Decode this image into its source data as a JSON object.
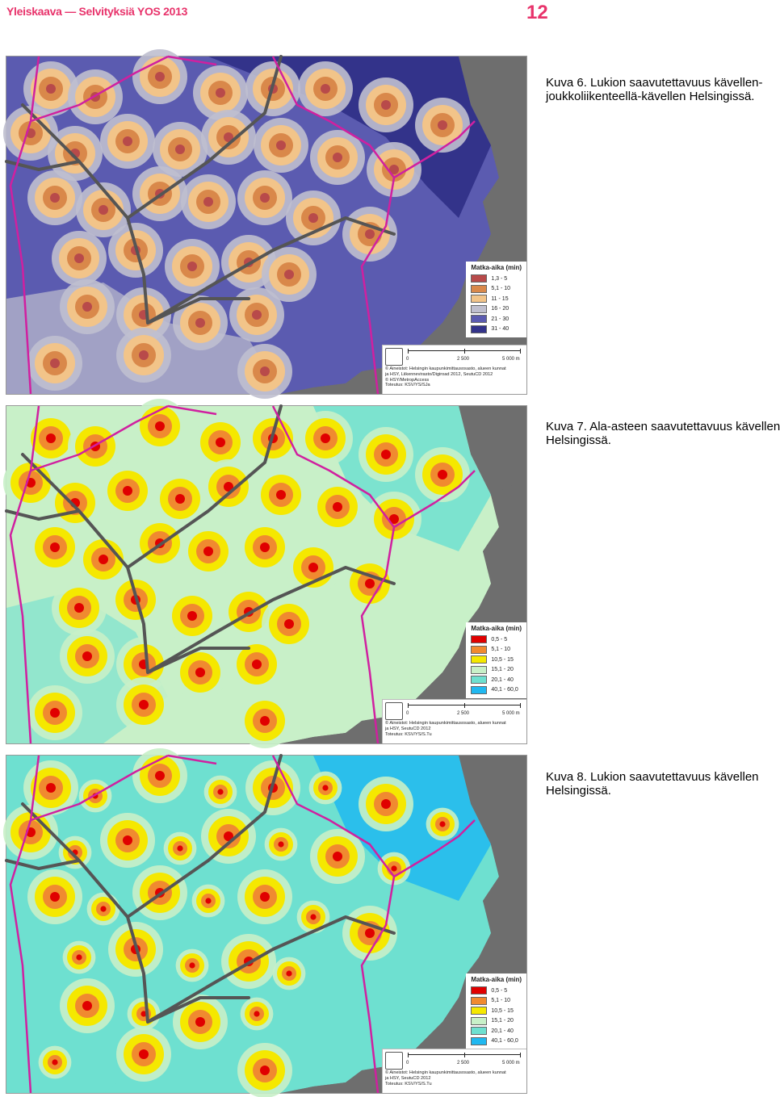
{
  "header": {
    "title": "Yleiskaava — Selvityksiä YOS 2013",
    "page_number": "12"
  },
  "figures": [
    {
      "caption_lines": [
        "Kuva 6. Lukion saavutettavuus kävellen-",
        "joukkoliikenteellä-kävellen  Helsingissä."
      ],
      "legend": {
        "title": "Matka-aika (min)",
        "classes": [
          {
            "label": "1,3 - 5",
            "color": "#b84a4a"
          },
          {
            "label": "5,1 - 10",
            "color": "#d9884a"
          },
          {
            "label": "11 - 15",
            "color": "#f2c489"
          },
          {
            "label": "16 - 20",
            "color": "#bfbfcf"
          },
          {
            "label": "21 - 30",
            "color": "#5b5bb0"
          },
          {
            "label": "31 - 40",
            "color": "#33338a"
          }
        ]
      },
      "scale": {
        "labels": [
          "0",
          "2 500",
          "5 000 m"
        ]
      },
      "credits": [
        "© Aineistot: Helsingin kaupunkimittausosasto, alueen kunnat",
        "ja HSY, Liikennevirasto/Digiroad 2012, SeutuCD 2012",
        "© HSY/MetropAccess",
        "Toteutus: KSV/YS/SJa"
      ]
    },
    {
      "caption_lines": [
        "Kuva 7. Ala-asteen saavutettavuus kävellen",
        "Helsingissä."
      ],
      "legend": {
        "title": "Matka-aika (min)",
        "classes": [
          {
            "label": "0,5 - 5",
            "color": "#e00000"
          },
          {
            "label": "5,1 - 10",
            "color": "#f08a30"
          },
          {
            "label": "10,5 - 15",
            "color": "#f5e800"
          },
          {
            "label": "15,1 - 20",
            "color": "#c8f0c8"
          },
          {
            "label": "20,1 - 40",
            "color": "#6ee0d0"
          },
          {
            "label": "40,1 - 60,0",
            "color": "#20b8f0"
          }
        ]
      },
      "scale": {
        "labels": [
          "0",
          "2 500",
          "5 000 m"
        ]
      },
      "credits": [
        "© Aineistot: Helsingin kaupunkimittausosasto, alueen kunnat",
        "ja HSY, SeutuCD 2012",
        "Toteutus: KSV/YS/S.Tu"
      ]
    },
    {
      "caption_lines": [
        "Kuva 8. Lukion saavutettavuus kävellen",
        "Helsingissä."
      ],
      "legend": {
        "title": "Matka-aika (min)",
        "classes": [
          {
            "label": "0,5 - 5",
            "color": "#e00000"
          },
          {
            "label": "5,1 - 10",
            "color": "#f08a30"
          },
          {
            "label": "10,5 - 15",
            "color": "#f5e800"
          },
          {
            "label": "15,1 - 20",
            "color": "#c8f0c8"
          },
          {
            "label": "20,1 - 40",
            "color": "#6ee0d0"
          },
          {
            "label": "40,1 - 60,0",
            "color": "#20b8f0"
          }
        ]
      },
      "scale": {
        "labels": [
          "0",
          "2 500",
          "5 000 m"
        ]
      },
      "credits": [
        "© Aineistot: Helsingin kaupunkimittausosasto, alueen kunnat",
        "ja HSY, SeutuCD 2012",
        "Toteutus: KSV/YS/S.Tu"
      ]
    }
  ],
  "colors": {
    "boundary": "#d020a0",
    "rail": "#555555",
    "sea": "#6e6e6e",
    "accent": "#e8336b"
  }
}
